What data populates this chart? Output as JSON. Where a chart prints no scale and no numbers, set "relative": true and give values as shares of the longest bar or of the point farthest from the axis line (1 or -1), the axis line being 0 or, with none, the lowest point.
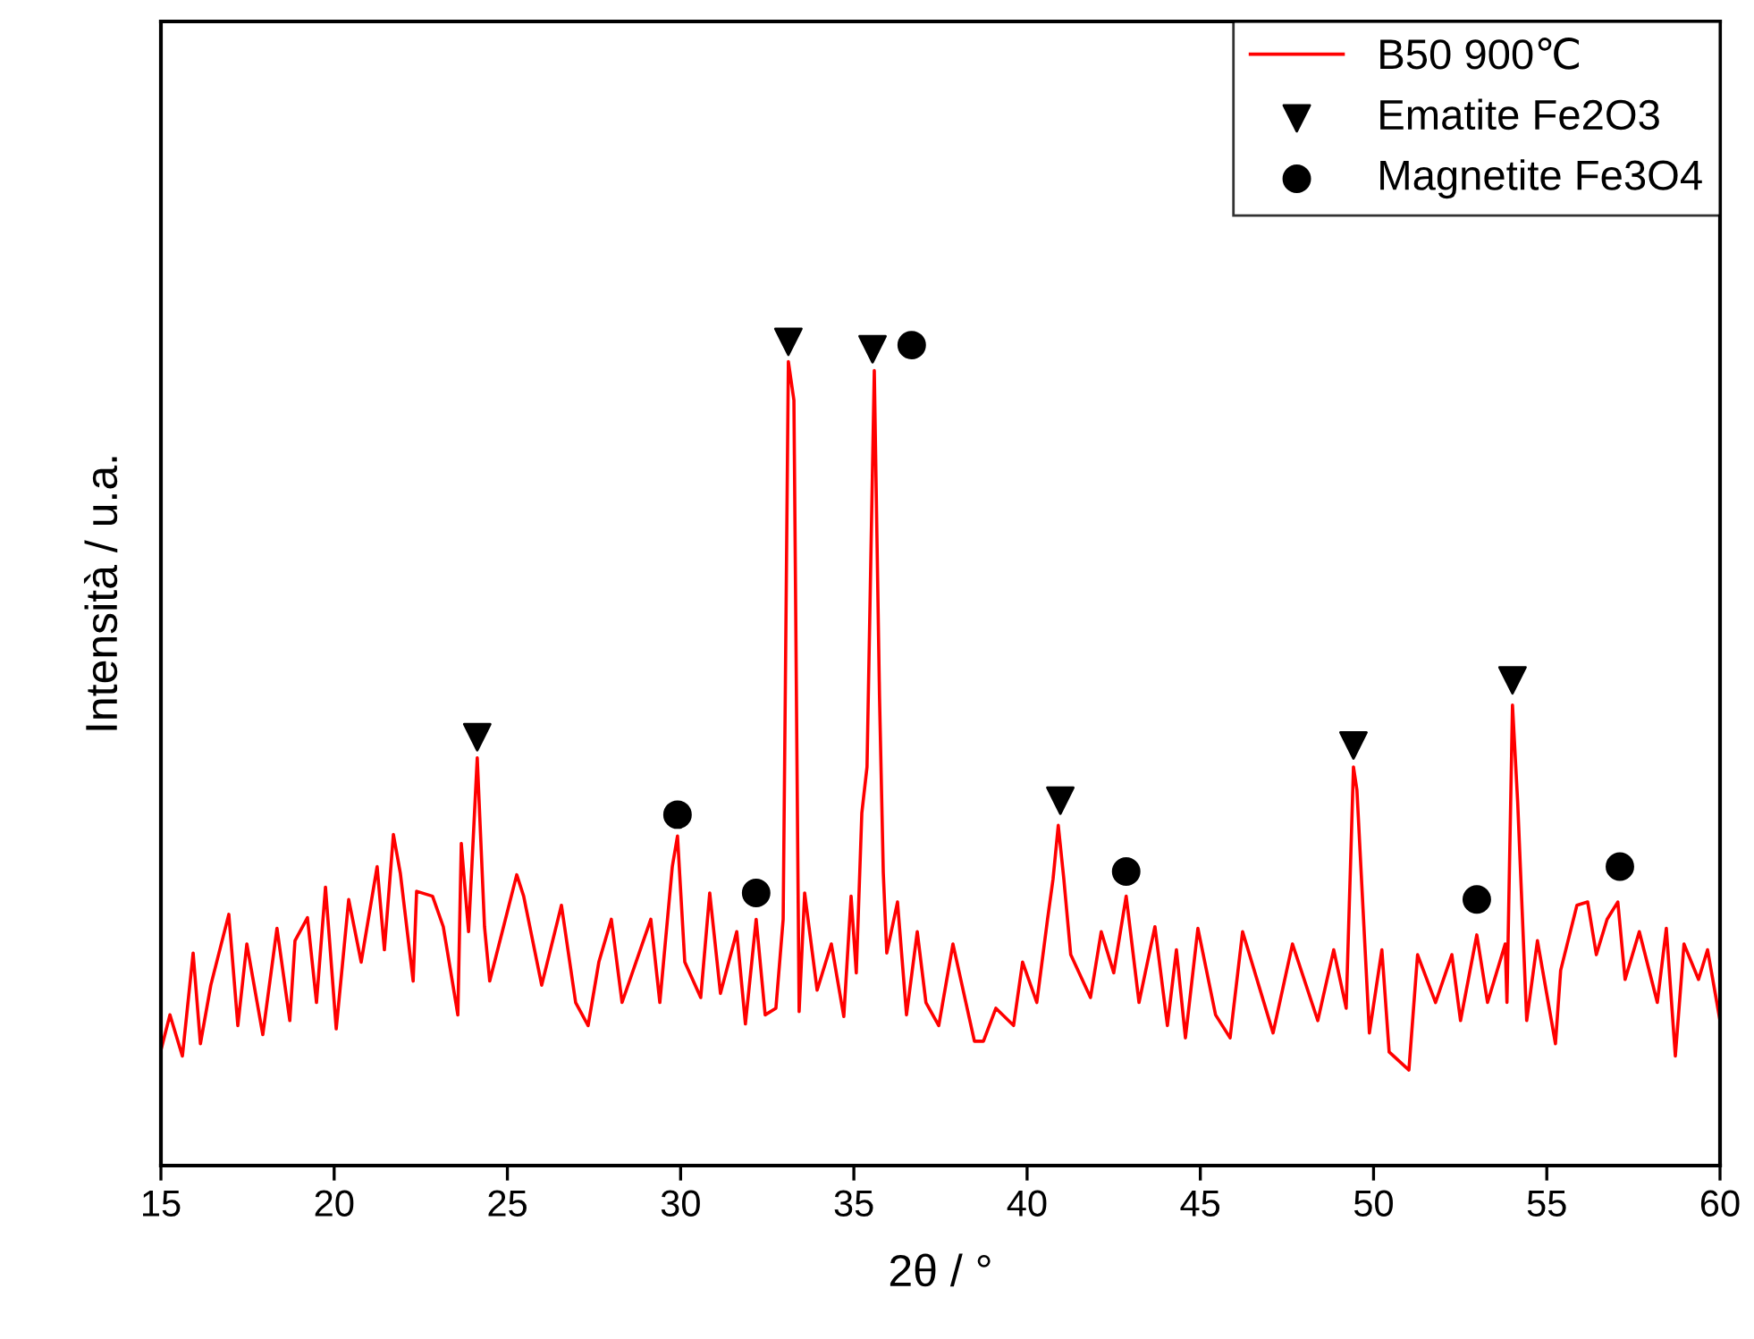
{
  "chart_data": {
    "type": "line",
    "xlabel": "2θ / °",
    "ylabel": "Intensità / u.a.",
    "relative": true,
    "legend": "top right",
    "grid": false,
    "tick_labels": "x",
    "xlim": [
      15,
      60
    ],
    "xticks": [
      15,
      20,
      25,
      30,
      35,
      40,
      45,
      50,
      55,
      60
    ],
    "series": [
      {
        "name": "B50 900℃",
        "color": "#ff0000",
        "marker": "none",
        "line_style": "solid",
        "x": [
          15.0,
          15.26,
          15.62,
          15.93,
          16.14,
          16.44,
          16.96,
          17.22,
          17.48,
          17.94,
          18.35,
          18.72,
          18.87,
          19.23,
          19.49,
          19.75,
          20.06,
          20.42,
          20.78,
          21.24,
          21.45,
          21.71,
          21.91,
          22.28,
          22.38,
          22.84,
          23.15,
          23.57,
          23.67,
          23.88,
          24.13,
          24.34,
          24.49,
          25.27,
          25.47,
          25.99,
          26.56,
          26.97,
          27.33,
          27.64,
          28.0,
          28.31,
          29.14,
          29.4,
          29.76,
          29.91,
          30.12,
          30.58,
          30.84,
          31.15,
          31.62,
          31.87,
          32.18,
          32.44,
          32.75,
          32.96,
          33.11,
          33.27,
          33.42,
          33.58,
          33.94,
          34.35,
          34.71,
          34.92,
          35.07,
          35.23,
          35.38,
          35.59,
          35.74,
          35.85,
          35.95,
          36.26,
          36.52,
          36.83,
          37.08,
          37.45,
          37.86,
          38.48,
          38.74,
          39.1,
          39.61,
          39.87,
          40.28,
          40.59,
          40.75,
          40.9,
          41.06,
          41.26,
          41.83,
          42.14,
          42.5,
          42.86,
          43.23,
          43.69,
          44.05,
          44.31,
          44.57,
          44.93,
          45.44,
          45.86,
          46.22,
          47.1,
          47.66,
          48.39,
          48.85,
          49.21,
          49.42,
          49.52,
          49.88,
          50.24,
          50.45,
          51.02,
          51.27,
          51.79,
          52.26,
          52.51,
          52.98,
          53.29,
          53.8,
          53.85,
          54.01,
          54.16,
          54.42,
          54.73,
          55.25,
          55.4,
          55.87,
          56.18,
          56.43,
          56.74,
          57.05,
          57.26,
          57.67,
          58.19,
          58.45,
          58.71,
          58.96,
          59.38,
          59.64,
          60.0
        ],
        "values": [
          0.14,
          0.183,
          0.133,
          0.258,
          0.148,
          0.219,
          0.305,
          0.17,
          0.269,
          0.159,
          0.288,
          0.176,
          0.273,
          0.301,
          0.198,
          0.338,
          0.166,
          0.323,
          0.247,
          0.363,
          0.262,
          0.402,
          0.355,
          0.224,
          0.333,
          0.327,
          0.29,
          0.183,
          0.391,
          0.284,
          0.495,
          0.29,
          0.224,
          0.353,
          0.327,
          0.219,
          0.316,
          0.198,
          0.17,
          0.247,
          0.299,
          0.198,
          0.299,
          0.198,
          0.363,
          0.4,
          0.247,
          0.204,
          0.331,
          0.209,
          0.284,
          0.172,
          0.299,
          0.183,
          0.191,
          0.299,
          0.976,
          0.929,
          0.187,
          0.331,
          0.213,
          0.269,
          0.181,
          0.327,
          0.234,
          0.428,
          0.484,
          0.965,
          0.57,
          0.355,
          0.258,
          0.32,
          0.183,
          0.284,
          0.198,
          0.17,
          0.269,
          0.151,
          0.151,
          0.191,
          0.17,
          0.247,
          0.198,
          0.299,
          0.348,
          0.413,
          0.348,
          0.256,
          0.204,
          0.284,
          0.234,
          0.327,
          0.198,
          0.29,
          0.17,
          0.262,
          0.155,
          0.288,
          0.183,
          0.155,
          0.284,
          0.161,
          0.269,
          0.176,
          0.262,
          0.191,
          0.484,
          0.456,
          0.161,
          0.262,
          0.138,
          0.116,
          0.256,
          0.198,
          0.256,
          0.176,
          0.28,
          0.198,
          0.269,
          0.198,
          0.559,
          0.441,
          0.176,
          0.273,
          0.148,
          0.237,
          0.316,
          0.32,
          0.256,
          0.299,
          0.32,
          0.226,
          0.284,
          0.198,
          0.288,
          0.133,
          0.269,
          0.226,
          0.262,
          0.176
        ]
      },
      {
        "name": "Ematite Fe2O3",
        "type": "scatter",
        "color": "#000000",
        "marker": "triangle",
        "x": [
          24.13,
          33.11,
          35.54,
          40.96,
          49.42,
          54.01
        ],
        "values": [
          0.52,
          1.0,
          0.991,
          0.443,
          0.51,
          0.589
        ]
      },
      {
        "name": "Magnetite Fe3O4",
        "type": "scatter",
        "color": "#000000",
        "marker": "circle",
        "x": [
          29.91,
          32.18,
          36.67,
          42.86,
          52.98,
          57.11
        ],
        "values": [
          0.426,
          0.331,
          0.996,
          0.357,
          0.323,
          0.363
        ]
      }
    ]
  }
}
